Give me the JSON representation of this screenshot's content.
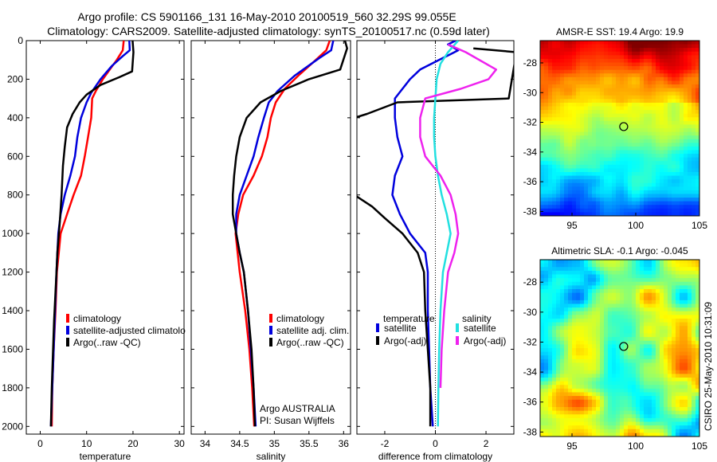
{
  "header": {
    "line1": "Argo profile: CS 5901166_131 16-May-2010 20100519_560 32.29S 99.055E",
    "line2": "Climatology: CARS2009. Satellite-adjusted climatology: synTS_20100517.nc (0.59d later)"
  },
  "colors": {
    "red": "#ff0000",
    "blue": "#0000dd",
    "black": "#000000",
    "cyan": "#22e0e0",
    "magenta": "#ee22ee"
  },
  "depth_ticks": [
    "0",
    "200",
    "400",
    "600",
    "800",
    "1000",
    "1200",
    "1400",
    "1600",
    "1800",
    "2000"
  ],
  "chart_data": [
    {
      "type": "line",
      "id": "temperature",
      "xlabel": "temperature",
      "ylabel": "",
      "xlim": [
        -3,
        31
      ],
      "ylim": [
        0,
        2040
      ],
      "y_reversed": true,
      "xticks": [
        0,
        10,
        20,
        30
      ],
      "xtick_labels": [
        "0",
        "10",
        "20",
        "30"
      ],
      "legend": [
        {
          "label": "climatology",
          "color": "red"
        },
        {
          "label": "satellite-adjusted climatolo",
          "color": "blue"
        },
        {
          "label": "Argo(..raw -QC)",
          "color": "black"
        }
      ],
      "series": [
        {
          "name": "climatology",
          "color": "red",
          "points": [
            [
              18,
              0
            ],
            [
              17.8,
              50
            ],
            [
              16.5,
              100
            ],
            [
              15,
              150
            ],
            [
              13.5,
              200
            ],
            [
              12,
              260
            ],
            [
              11.2,
              300
            ],
            [
              11,
              400
            ],
            [
              10.3,
              500
            ],
            [
              9.6,
              600
            ],
            [
              8.8,
              700
            ],
            [
              7.2,
              800
            ],
            [
              5.8,
              900
            ],
            [
              4.4,
              1000
            ],
            [
              4,
              1100
            ],
            [
              3.6,
              1200
            ],
            [
              3.3,
              1400
            ],
            [
              2.9,
              1600
            ],
            [
              2.6,
              1800
            ],
            [
              2.5,
              2000
            ]
          ]
        },
        {
          "name": "satellite-adjusted climatology",
          "color": "blue",
          "points": [
            [
              19.2,
              0
            ],
            [
              19.3,
              50
            ],
            [
              17.8,
              80
            ],
            [
              15.5,
              130
            ],
            [
              13,
              200
            ],
            [
              11,
              270
            ],
            [
              10,
              320
            ],
            [
              8.8,
              400
            ],
            [
              8,
              500
            ],
            [
              7.5,
              600
            ],
            [
              6.5,
              700
            ],
            [
              5.3,
              800
            ],
            [
              4.4,
              900
            ],
            [
              3.9,
              1000
            ],
            [
              3.7,
              1100
            ],
            [
              3.5,
              1200
            ],
            [
              3.2,
              1400
            ],
            [
              2.9,
              1600
            ],
            [
              2.6,
              1800
            ],
            [
              2.3,
              2000
            ]
          ]
        },
        {
          "name": "Argo(..raw -QC)",
          "color": "black",
          "points": [
            [
              19.9,
              0
            ],
            [
              20.1,
              60
            ],
            [
              19.8,
              160
            ],
            [
              17,
              190
            ],
            [
              13,
              230
            ],
            [
              10,
              280
            ],
            [
              8.5,
              320
            ],
            [
              7,
              380
            ],
            [
              5.8,
              450
            ],
            [
              5.3,
              550
            ],
            [
              4.9,
              650
            ],
            [
              4.6,
              800
            ],
            [
              4.2,
              950
            ],
            [
              3.7,
              1100
            ],
            [
              3.4,
              1250
            ],
            [
              3,
              1450
            ],
            [
              2.7,
              1650
            ],
            [
              2.5,
              1800
            ],
            [
              2.3,
              2000
            ]
          ]
        }
      ]
    },
    {
      "type": "line",
      "id": "salinity",
      "xlabel": "salinity",
      "xlim": [
        33.8,
        36.1
      ],
      "ylim": [
        0,
        2040
      ],
      "y_reversed": true,
      "xticks": [
        34,
        34.5,
        35,
        35.5,
        36
      ],
      "xtick_labels": [
        "34",
        "34.5",
        "35",
        "35.5",
        "36"
      ],
      "legend": [
        {
          "label": "climatology",
          "color": "red"
        },
        {
          "label": "satellite adj. clim.",
          "color": "blue"
        },
        {
          "label": "Argo(..raw -QC)",
          "color": "black"
        }
      ],
      "annotations": [
        "Argo AUSTRALIA",
        "PI: Susan Wijffels"
      ],
      "series": [
        {
          "name": "climatology",
          "color": "red",
          "points": [
            [
              35.8,
              0
            ],
            [
              35.75,
              50
            ],
            [
              35.6,
              100
            ],
            [
              35.35,
              180
            ],
            [
              35.15,
              250
            ],
            [
              35.02,
              320
            ],
            [
              34.95,
              400
            ],
            [
              34.9,
              500
            ],
            [
              34.82,
              600
            ],
            [
              34.7,
              700
            ],
            [
              34.55,
              800
            ],
            [
              34.48,
              900
            ],
            [
              34.44,
              1000
            ],
            [
              34.47,
              1100
            ],
            [
              34.5,
              1200
            ],
            [
              34.58,
              1400
            ],
            [
              34.64,
              1600
            ],
            [
              34.68,
              1800
            ],
            [
              34.71,
              2000
            ]
          ]
        },
        {
          "name": "satellite adj. clim.",
          "color": "blue",
          "points": [
            [
              35.85,
              0
            ],
            [
              35.82,
              50
            ],
            [
              35.65,
              90
            ],
            [
              35.3,
              180
            ],
            [
              35.05,
              260
            ],
            [
              34.92,
              320
            ],
            [
              34.85,
              400
            ],
            [
              34.77,
              500
            ],
            [
              34.7,
              600
            ],
            [
              34.6,
              700
            ],
            [
              34.5,
              800
            ],
            [
              34.45,
              900
            ],
            [
              34.45,
              1000
            ],
            [
              34.5,
              1100
            ],
            [
              34.56,
              1200
            ],
            [
              34.62,
              1400
            ],
            [
              34.66,
              1600
            ],
            [
              34.7,
              1800
            ],
            [
              34.73,
              2000
            ]
          ]
        },
        {
          "name": "Argo(..raw -QC)",
          "color": "black",
          "points": [
            [
              36.02,
              0
            ],
            [
              36.05,
              40
            ],
            [
              35.95,
              150
            ],
            [
              35.5,
              200
            ],
            [
              35.1,
              260
            ],
            [
              34.8,
              320
            ],
            [
              34.6,
              400
            ],
            [
              34.5,
              500
            ],
            [
              34.45,
              600
            ],
            [
              34.42,
              700
            ],
            [
              34.4,
              800
            ],
            [
              34.4,
              900
            ],
            [
              34.45,
              1000
            ],
            [
              34.5,
              1100
            ],
            [
              34.56,
              1200
            ],
            [
              34.62,
              1400
            ],
            [
              34.67,
              1600
            ],
            [
              34.7,
              1800
            ],
            [
              34.72,
              2000
            ]
          ]
        }
      ]
    },
    {
      "type": "line",
      "id": "difference",
      "xlabel": "difference from climatology",
      "xlim": [
        -3.1,
        3.1
      ],
      "ylim": [
        0,
        2040
      ],
      "y_reversed": true,
      "xticks": [
        -2,
        0,
        2
      ],
      "xtick_labels": [
        "-2",
        "0",
        "2"
      ],
      "zero_line": true,
      "legend_left_title": "temperature",
      "legend_right_title": "salinity",
      "legend": [
        {
          "label": "satellite",
          "color": "blue",
          "group": "temperature"
        },
        {
          "label": "Argo(-adj)",
          "color": "black",
          "group": "temperature"
        },
        {
          "label": "satellite",
          "color": "cyan",
          "group": "salinity"
        },
        {
          "label": "Argo(-adj)",
          "color": "magenta",
          "group": "salinity"
        }
      ],
      "series": [
        {
          "name": "temperature satellite",
          "color": "blue",
          "points": [
            [
              0.8,
              0
            ],
            [
              0.5,
              20
            ],
            [
              0.9,
              50
            ],
            [
              0.6,
              70
            ],
            [
              0.3,
              90
            ],
            [
              -0.6,
              150
            ],
            [
              -1,
              200
            ],
            [
              -1.6,
              300
            ],
            [
              -1.6,
              400
            ],
            [
              -1.5,
              500
            ],
            [
              -1.3,
              600
            ],
            [
              -1.6,
              700
            ],
            [
              -1.7,
              800
            ],
            [
              -1.4,
              900
            ],
            [
              -1,
              1000
            ],
            [
              -0.4,
              1100
            ],
            [
              -0.3,
              1200
            ],
            [
              -0.3,
              1400
            ],
            [
              -0.25,
              1600
            ],
            [
              -0.2,
              1800
            ],
            [
              -0.1,
              2000
            ]
          ]
        },
        {
          "name": "temperature Argo(-adj)",
          "color": "black",
          "points": [
            [
              1.5,
              40
            ],
            [
              3.2,
              60
            ],
            [
              2.9,
              300
            ],
            [
              -1.5,
              320
            ],
            [
              -2.7,
              380
            ],
            [
              -3.2,
              400
            ],
            [
              -3.2,
              800
            ],
            [
              -2.5,
              860
            ],
            [
              -2,
              920
            ],
            [
              -1.3,
              1000
            ],
            [
              -0.7,
              1100
            ],
            [
              -0.45,
              1200
            ],
            [
              -0.4,
              1400
            ],
            [
              -0.3,
              1600
            ],
            [
              -0.2,
              1800
            ],
            [
              -0.2,
              2000
            ]
          ]
        },
        {
          "name": "salinity satellite",
          "color": "cyan",
          "points": [
            [
              0.9,
              0
            ],
            [
              0.7,
              30
            ],
            [
              0.5,
              60
            ],
            [
              0.2,
              120
            ],
            [
              0.05,
              200
            ],
            [
              0,
              300
            ],
            [
              -0.05,
              400
            ],
            [
              -0.05,
              500
            ],
            [
              0,
              600
            ],
            [
              0.1,
              700
            ],
            [
              0.25,
              800
            ],
            [
              0.45,
              900
            ],
            [
              0.6,
              1000
            ],
            [
              0.45,
              1100
            ],
            [
              0.3,
              1200
            ],
            [
              0.2,
              1400
            ],
            [
              0.15,
              1600
            ],
            [
              0.12,
              1800
            ],
            [
              0.1,
              2000
            ]
          ]
        },
        {
          "name": "salinity Argo(-adj)",
          "color": "magenta",
          "points": [
            [
              0.5,
              20
            ],
            [
              1.2,
              60
            ],
            [
              2.4,
              150
            ],
            [
              2.1,
              200
            ],
            [
              1,
              250
            ],
            [
              -0.4,
              300
            ],
            [
              -0.6,
              400
            ],
            [
              -0.6,
              500
            ],
            [
              -0.4,
              600
            ],
            [
              0.2,
              700
            ],
            [
              0.6,
              800
            ],
            [
              0.8,
              900
            ],
            [
              0.9,
              1000
            ],
            [
              0.75,
              1100
            ],
            [
              0.5,
              1200
            ],
            [
              0.35,
              1400
            ],
            [
              0.25,
              1600
            ],
            [
              0.2,
              1800
            ]
          ]
        }
      ]
    },
    {
      "type": "heatmap",
      "id": "sst-map",
      "title": "AMSR-E SST: 19.4 Argo: 19.9",
      "xlim": [
        92.5,
        105
      ],
      "ylim": [
        -38.3,
        -26.5
      ],
      "xticks": [
        95,
        100,
        105
      ],
      "xtick_labels": [
        "95",
        "100",
        "105"
      ],
      "yticks": [
        -28,
        -30,
        -32,
        -34,
        -36,
        -38
      ],
      "ytick_labels": [
        "-28",
        "-30",
        "-32",
        "-34",
        "-36",
        "-38"
      ],
      "marker": {
        "lon": 99.055,
        "lat": -32.29
      }
    },
    {
      "type": "heatmap",
      "id": "sla-map",
      "title": "Altimetric SLA: -0.1 Argo: -0.045",
      "xlim": [
        92.5,
        105
      ],
      "ylim": [
        -38.3,
        -26.5
      ],
      "xticks": [
        95,
        100,
        105
      ],
      "xtick_labels": [
        "95",
        "100",
        "105"
      ],
      "yticks": [
        -28,
        -30,
        -32,
        -34,
        -36,
        -38
      ],
      "ytick_labels": [
        "-28",
        "-30",
        "-32",
        "-34",
        "-36",
        "-38"
      ],
      "marker": {
        "lon": 99.055,
        "lat": -32.29
      }
    }
  ],
  "side_label": "CSIRO 25-May-2010 10:31:09"
}
